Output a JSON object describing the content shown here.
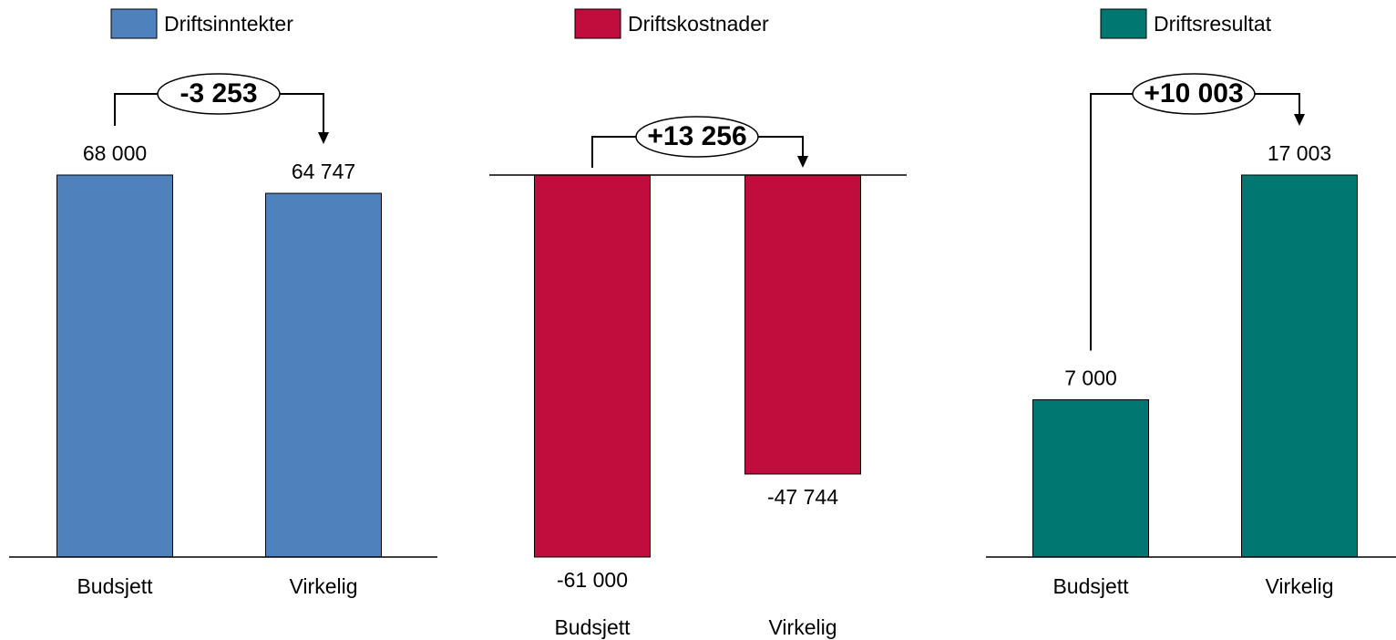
{
  "chart_data": [
    {
      "type": "bar",
      "categories": [
        "Budsjett",
        "Virkelig"
      ],
      "series": [
        {
          "name": "Driftsinntekter",
          "color": "#4f81bd",
          "values": [
            68000,
            64747
          ],
          "value_labels": [
            "68 000",
            "64 747"
          ]
        }
      ],
      "annotation": "-3 253",
      "ylim": [
        0,
        68000
      ]
    },
    {
      "type": "bar",
      "categories": [
        "Budsjett",
        "Virkelig"
      ],
      "series": [
        {
          "name": "Driftskostnader",
          "color": "#c00d3d",
          "values": [
            -61000,
            -47744
          ],
          "value_labels": [
            "-61 000",
            "-47 744"
          ]
        }
      ],
      "annotation": "+13 256",
      "ylim": [
        -61000,
        0
      ]
    },
    {
      "type": "bar",
      "categories": [
        "Budsjett",
        "Virkelig"
      ],
      "series": [
        {
          "name": "Driftsresultat",
          "color": "#007770",
          "values": [
            7000,
            17003
          ],
          "value_labels": [
            "7 000",
            "17 003"
          ]
        }
      ],
      "annotation": "+10 003",
      "ylim": [
        0,
        17003
      ]
    }
  ]
}
